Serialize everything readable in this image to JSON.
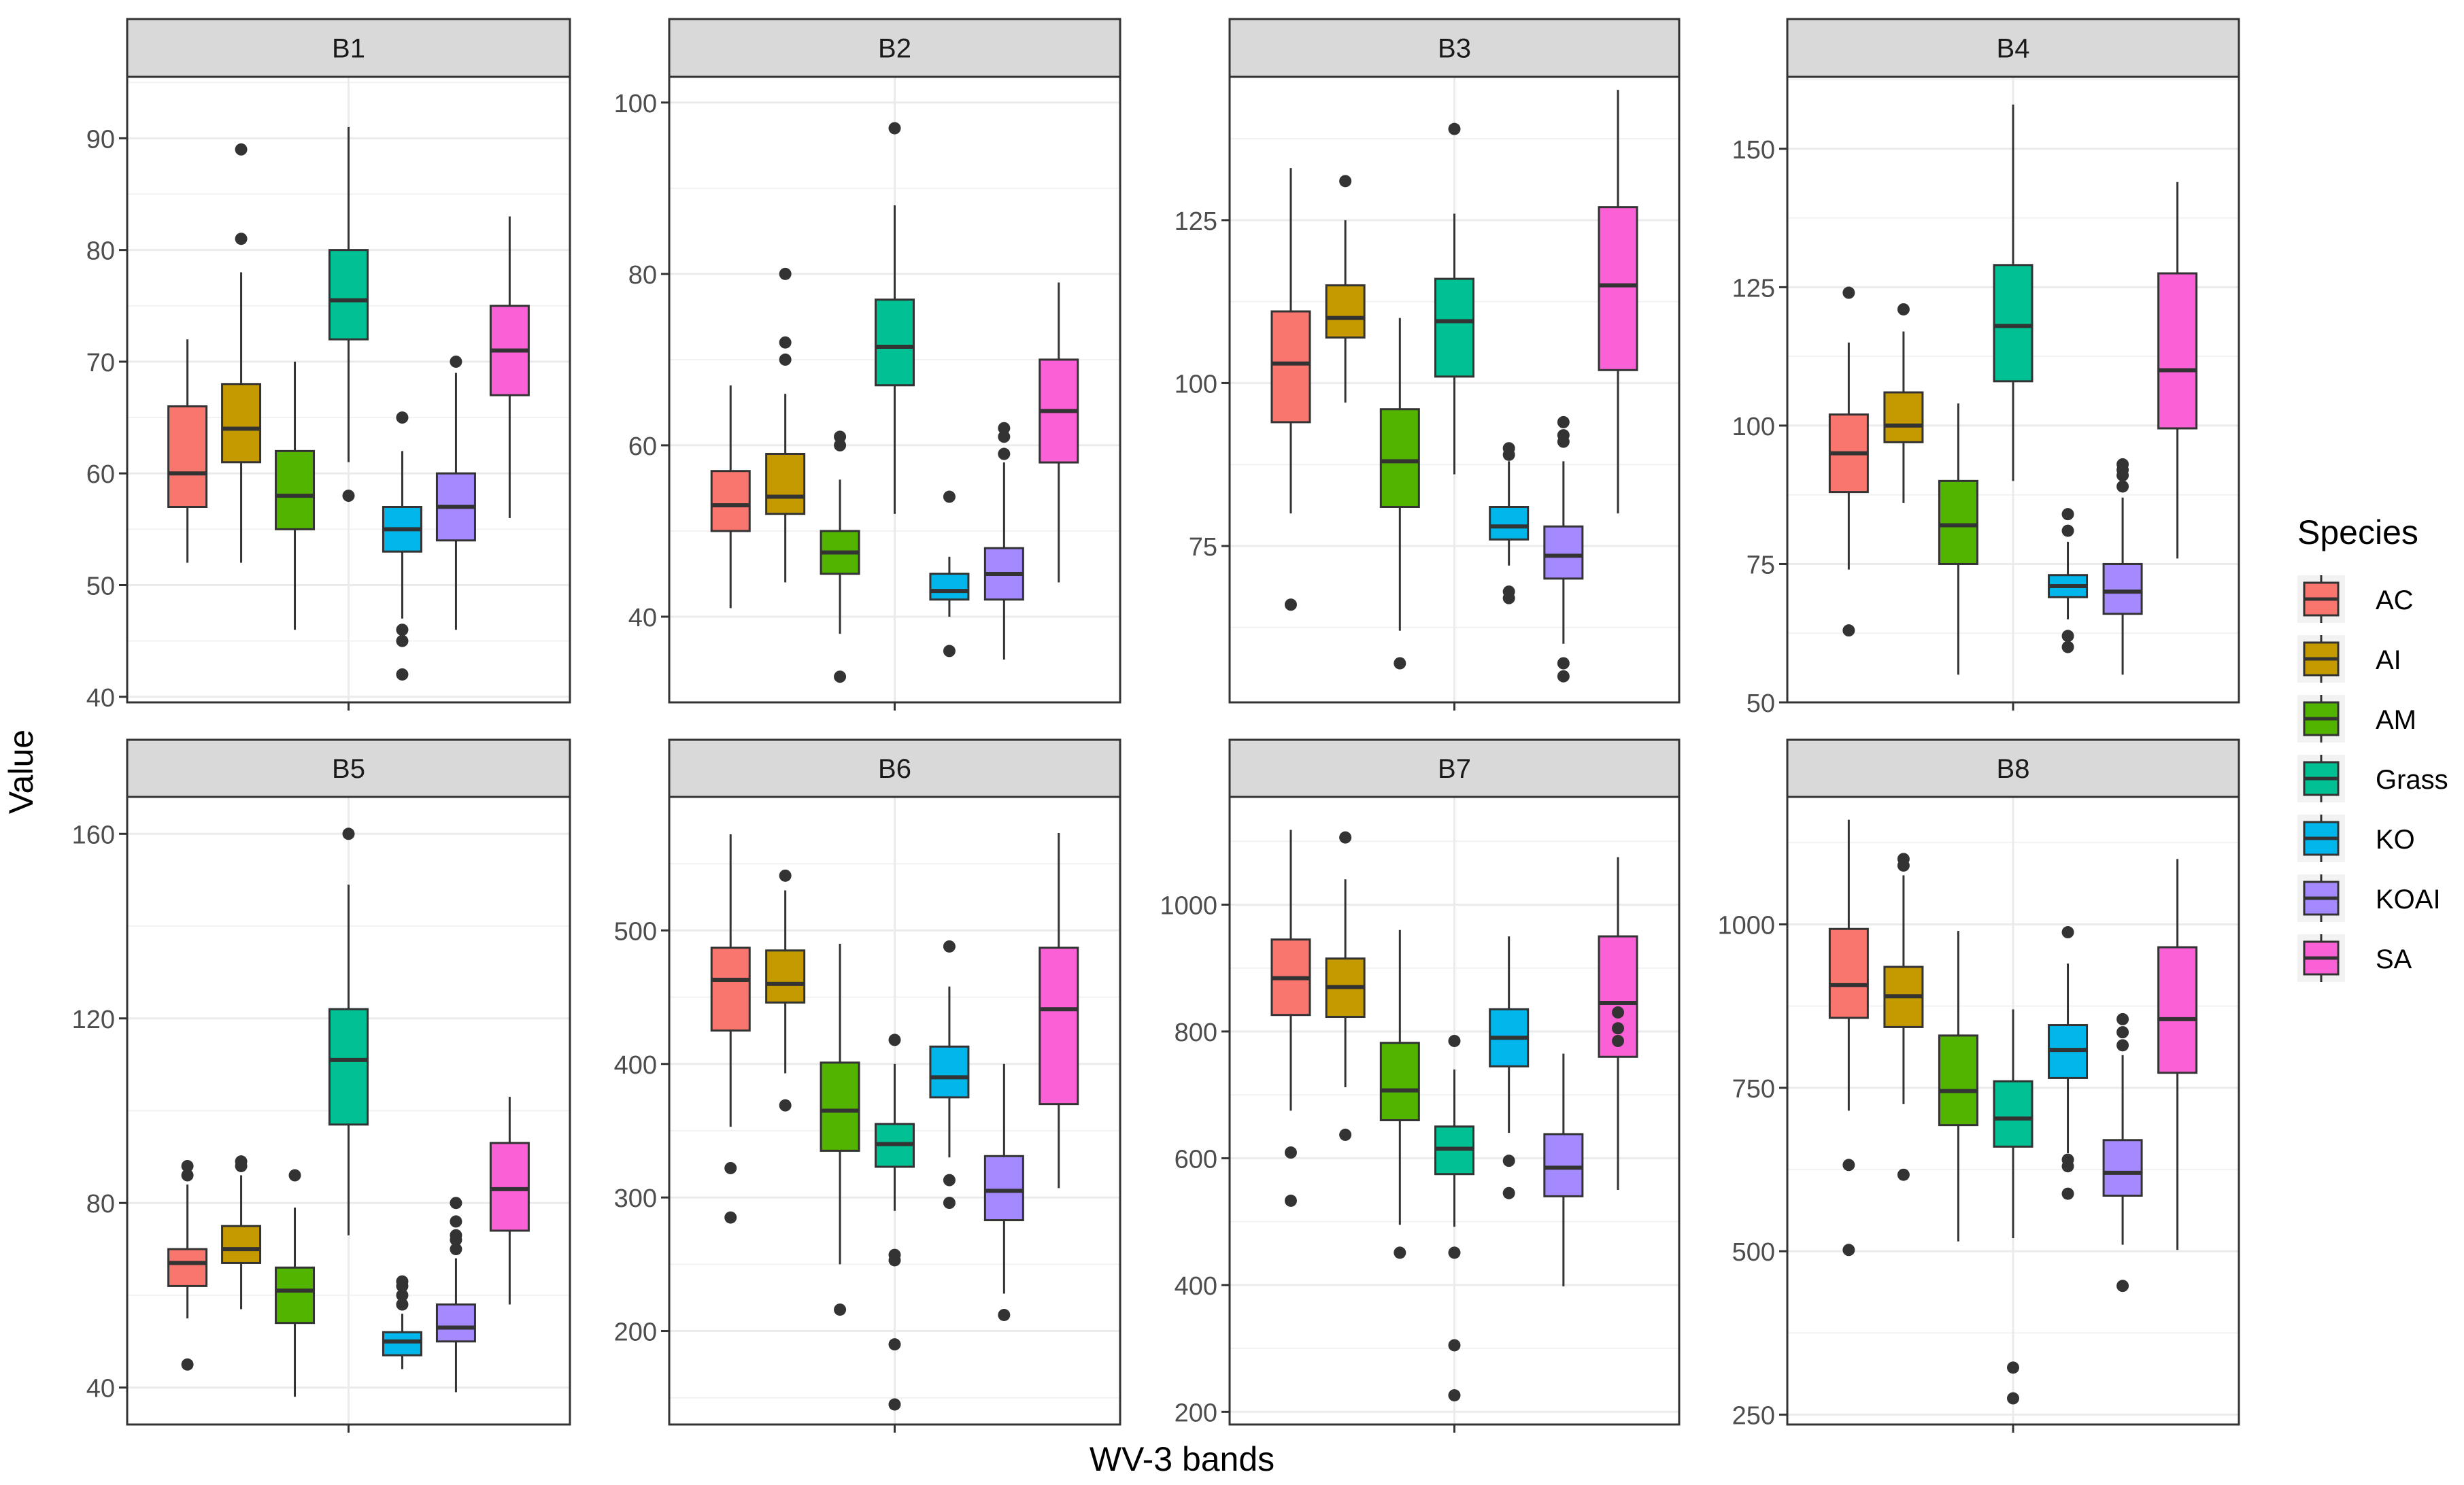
{
  "chart_data": {
    "type": "boxplot",
    "xlabel": "WV-3 bands",
    "ylabel": "Value",
    "legend": {
      "title": "Species",
      "position": "right",
      "entries": [
        "AC",
        "AI",
        "AM",
        "Grass",
        "KO",
        "KOAI",
        "SA"
      ]
    },
    "colors": {
      "AC": "#F8766D",
      "AI": "#C49A00",
      "AM": "#53B400",
      "Grass": "#00C094",
      "KO": "#00B6EB",
      "KOAI": "#A58AFF",
      "SA": "#FB61D7"
    },
    "grid": true,
    "panels": [
      {
        "title": "B1",
        "ylim": [
          39.5,
          95.5
        ],
        "yticks": [
          40,
          50,
          60,
          70,
          80,
          90
        ],
        "boxes": [
          {
            "species": "AC",
            "min": 52,
            "q1": 57,
            "median": 60,
            "q3": 66,
            "max": 72,
            "outliers": []
          },
          {
            "species": "AI",
            "min": 52,
            "q1": 61,
            "median": 64,
            "q3": 68,
            "max": 78,
            "outliers": [
              81,
              89
            ]
          },
          {
            "species": "AM",
            "min": 46,
            "q1": 55,
            "median": 58,
            "q3": 62,
            "max": 70,
            "outliers": []
          },
          {
            "species": "Grass",
            "min": 61,
            "q1": 72,
            "median": 75.5,
            "q3": 80,
            "max": 91,
            "outliers": [
              58
            ]
          },
          {
            "species": "KO",
            "min": 47,
            "q1": 53,
            "median": 55,
            "q3": 57,
            "max": 62,
            "outliers": [
              42,
              45,
              46,
              65
            ]
          },
          {
            "species": "KOAI",
            "min": 46,
            "q1": 54,
            "median": 57,
            "q3": 60,
            "max": 69,
            "outliers": [
              70
            ]
          },
          {
            "species": "SA",
            "min": 56,
            "q1": 67,
            "median": 71,
            "q3": 75,
            "max": 83,
            "outliers": []
          }
        ]
      },
      {
        "title": "B2",
        "ylim": [
          30,
          103
        ],
        "yticks": [
          40,
          60,
          80,
          100
        ],
        "boxes": [
          {
            "species": "AC",
            "min": 41,
            "q1": 50,
            "median": 53,
            "q3": 57,
            "max": 67,
            "outliers": []
          },
          {
            "species": "AI",
            "min": 44,
            "q1": 52,
            "median": 54,
            "q3": 59,
            "max": 66,
            "outliers": [
              70,
              72,
              80
            ]
          },
          {
            "species": "AM",
            "min": 38,
            "q1": 45,
            "median": 47.5,
            "q3": 50,
            "max": 56,
            "outliers": [
              33,
              60,
              61
            ]
          },
          {
            "species": "Grass",
            "min": 52,
            "q1": 67,
            "median": 71.5,
            "q3": 77,
            "max": 88,
            "outliers": [
              97
            ]
          },
          {
            "species": "KO",
            "min": 40,
            "q1": 42,
            "median": 43,
            "q3": 45,
            "max": 47,
            "outliers": [
              36,
              54
            ]
          },
          {
            "species": "KOAI",
            "min": 35,
            "q1": 42,
            "median": 45,
            "q3": 48,
            "max": 58,
            "outliers": [
              59,
              61,
              62
            ]
          },
          {
            "species": "SA",
            "min": 44,
            "q1": 58,
            "median": 64,
            "q3": 70,
            "max": 79,
            "outliers": []
          }
        ]
      },
      {
        "title": "B3",
        "ylim": [
          51,
          147
        ],
        "yticks": [
          75,
          100,
          125
        ],
        "boxes": [
          {
            "species": "AC",
            "min": 80,
            "q1": 94,
            "median": 103,
            "q3": 111,
            "max": 133,
            "outliers": [
              66
            ]
          },
          {
            "species": "AI",
            "min": 97,
            "q1": 107,
            "median": 110,
            "q3": 115,
            "max": 125,
            "outliers": [
              131
            ]
          },
          {
            "species": "AM",
            "min": 62,
            "q1": 81,
            "median": 88,
            "q3": 96,
            "max": 110,
            "outliers": [
              57
            ]
          },
          {
            "species": "Grass",
            "min": 86,
            "q1": 101,
            "median": 109.5,
            "q3": 116,
            "max": 126,
            "outliers": [
              139
            ]
          },
          {
            "species": "KO",
            "min": 72,
            "q1": 76,
            "median": 78,
            "q3": 81,
            "max": 88,
            "outliers": [
              67,
              68,
              89,
              90
            ]
          },
          {
            "species": "KOAI",
            "min": 60,
            "q1": 70,
            "median": 73.5,
            "q3": 78,
            "max": 88,
            "outliers": [
              55,
              57,
              91,
              92,
              94
            ]
          },
          {
            "species": "SA",
            "min": 80,
            "q1": 102,
            "median": 115,
            "q3": 127,
            "max": 145,
            "outliers": []
          }
        ]
      },
      {
        "title": "B4",
        "ylim": [
          50,
          163
        ],
        "yticks": [
          50,
          75,
          100,
          125,
          150
        ],
        "boxes": [
          {
            "species": "AC",
            "min": 74,
            "q1": 88,
            "median": 95,
            "q3": 102,
            "max": 115,
            "outliers": [
              63,
              124
            ]
          },
          {
            "species": "AI",
            "min": 86,
            "q1": 97,
            "median": 100,
            "q3": 106,
            "max": 117,
            "outliers": [
              121
            ]
          },
          {
            "species": "AM",
            "min": 55,
            "q1": 75,
            "median": 82,
            "q3": 90,
            "max": 104,
            "outliers": []
          },
          {
            "species": "Grass",
            "min": 90,
            "q1": 108,
            "median": 118,
            "q3": 129,
            "max": 158,
            "outliers": []
          },
          {
            "species": "KO",
            "min": 65,
            "q1": 69,
            "median": 71,
            "q3": 73,
            "max": 79,
            "outliers": [
              60,
              62,
              81,
              84
            ]
          },
          {
            "species": "KOAI",
            "min": 55,
            "q1": 66,
            "median": 70,
            "q3": 75,
            "max": 87,
            "outliers": [
              89,
              91,
              92,
              93
            ]
          },
          {
            "species": "SA",
            "min": 76,
            "q1": 99.5,
            "median": 110,
            "q3": 127.5,
            "max": 144,
            "outliers": []
          }
        ]
      },
      {
        "title": "B5",
        "ylim": [
          32,
          168
        ],
        "yticks": [
          40,
          80,
          120,
          160
        ],
        "boxes": [
          {
            "species": "AC",
            "min": 55,
            "q1": 62,
            "median": 67,
            "q3": 70,
            "max": 84,
            "outliers": [
              45,
              86,
              88
            ]
          },
          {
            "species": "AI",
            "min": 57,
            "q1": 67,
            "median": 70,
            "q3": 75,
            "max": 86,
            "outliers": [
              88,
              89
            ]
          },
          {
            "species": "AM",
            "min": 38,
            "q1": 54,
            "median": 61,
            "q3": 66,
            "max": 79,
            "outliers": [
              86
            ]
          },
          {
            "species": "Grass",
            "min": 73,
            "q1": 97,
            "median": 111,
            "q3": 122,
            "max": 149,
            "outliers": [
              160
            ]
          },
          {
            "species": "KO",
            "min": 44,
            "q1": 47,
            "median": 50,
            "q3": 52,
            "max": 56,
            "outliers": [
              58,
              60,
              62,
              63
            ]
          },
          {
            "species": "KOAI",
            "min": 39,
            "q1": 50,
            "median": 53,
            "q3": 58,
            "max": 68,
            "outliers": [
              70,
              72,
              73,
              76,
              80
            ]
          },
          {
            "species": "SA",
            "min": 58,
            "q1": 74,
            "median": 83,
            "q3": 93,
            "max": 103,
            "outliers": []
          }
        ]
      },
      {
        "title": "B6",
        "ylim": [
          130,
          600
        ],
        "yticks": [
          200,
          300,
          400,
          500
        ],
        "boxes": [
          {
            "species": "AC",
            "min": 353,
            "q1": 425,
            "median": 463,
            "q3": 487,
            "max": 572,
            "outliers": [
              285,
              322
            ]
          },
          {
            "species": "AI",
            "min": 393,
            "q1": 446,
            "median": 460,
            "q3": 485,
            "max": 530,
            "outliers": [
              369,
              541
            ]
          },
          {
            "species": "AM",
            "min": 250,
            "q1": 335,
            "median": 365,
            "q3": 401,
            "max": 490,
            "outliers": [
              216
            ]
          },
          {
            "species": "Grass",
            "min": 290,
            "q1": 323,
            "median": 340,
            "q3": 355,
            "max": 400,
            "outliers": [
              145,
              190,
              253,
              257,
              418
            ]
          },
          {
            "species": "KO",
            "min": 330,
            "q1": 375,
            "median": 390,
            "q3": 413,
            "max": 458,
            "outliers": [
              296,
              313,
              488
            ]
          },
          {
            "species": "KOAI",
            "min": 228,
            "q1": 283,
            "median": 305,
            "q3": 331,
            "max": 400,
            "outliers": [
              212
            ]
          },
          {
            "species": "SA",
            "min": 307,
            "q1": 370,
            "median": 441,
            "q3": 487,
            "max": 573,
            "outliers": []
          }
        ]
      },
      {
        "title": "B7",
        "ylim": [
          180,
          1170
        ],
        "yticks": [
          200,
          400,
          600,
          800,
          1000
        ],
        "boxes": [
          {
            "species": "AC",
            "min": 675,
            "q1": 826,
            "median": 884,
            "q3": 945,
            "max": 1118,
            "outliers": [
              533,
              609
            ]
          },
          {
            "species": "AI",
            "min": 712,
            "q1": 823,
            "median": 870,
            "q3": 915,
            "max": 1040,
            "outliers": [
              637,
              1106
            ]
          },
          {
            "species": "AM",
            "min": 495,
            "q1": 660,
            "median": 707,
            "q3": 782,
            "max": 960,
            "outliers": [
              451
            ]
          },
          {
            "species": "Grass",
            "min": 492,
            "q1": 575,
            "median": 615,
            "q3": 650,
            "max": 740,
            "outliers": [
              226,
              305,
              451,
              785
            ]
          },
          {
            "species": "KO",
            "min": 640,
            "q1": 745,
            "median": 790,
            "q3": 835,
            "max": 950,
            "outliers": [
              545,
              596
            ]
          },
          {
            "species": "KOAI",
            "min": 398,
            "q1": 540,
            "median": 585,
            "q3": 638,
            "max": 765,
            "outliers": []
          },
          {
            "species": "SA",
            "min": 550,
            "q1": 760,
            "median": 845,
            "q3": 950,
            "max": 1075,
            "outliers": [
              785,
              805,
              830
            ]
          }
        ]
      },
      {
        "title": "B8",
        "ylim": [
          235,
          1195
        ],
        "yticks": [
          250,
          500,
          750,
          1000
        ],
        "boxes": [
          {
            "species": "AC",
            "min": 715,
            "q1": 857,
            "median": 907,
            "q3": 993,
            "max": 1160,
            "outliers": [
              502,
              632
            ]
          },
          {
            "species": "AI",
            "min": 725,
            "q1": 843,
            "median": 890,
            "q3": 935,
            "max": 1075,
            "outliers": [
              617,
              1090,
              1100
            ]
          },
          {
            "species": "AM",
            "min": 515,
            "q1": 693,
            "median": 745,
            "q3": 830,
            "max": 990,
            "outliers": []
          },
          {
            "species": "Grass",
            "min": 520,
            "q1": 660,
            "median": 703,
            "q3": 760,
            "max": 870,
            "outliers": [
              275,
              322
            ]
          },
          {
            "species": "KO",
            "min": 650,
            "q1": 765,
            "median": 808,
            "q3": 846,
            "max": 940,
            "outliers": [
              588,
              630,
              640,
              988
            ]
          },
          {
            "species": "KOAI",
            "min": 510,
            "q1": 585,
            "median": 620,
            "q3": 670,
            "max": 800,
            "outliers": [
              447,
              815,
              835,
              855
            ]
          },
          {
            "species": "SA",
            "min": 502,
            "q1": 773,
            "median": 855,
            "q3": 965,
            "max": 1100,
            "outliers": []
          }
        ]
      }
    ]
  }
}
